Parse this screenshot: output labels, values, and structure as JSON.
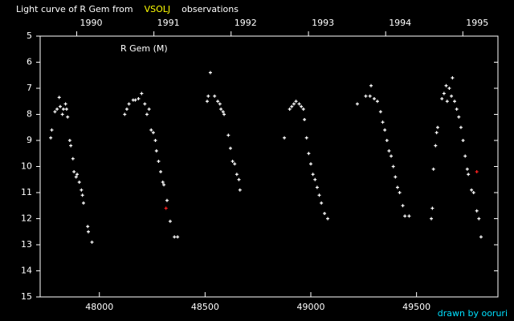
{
  "chart_data": {
    "type": "scatter",
    "title_parts": [
      "Light curve of R Gem from",
      "VSOLJ",
      "observations"
    ],
    "title_colors": [
      "#ffffff",
      "#ffff00",
      "#ffffff"
    ],
    "label": "R Gem (M)",
    "credit": "drawn by ooruri",
    "xlim": [
      47720,
      49885
    ],
    "ylim": [
      15,
      5
    ],
    "xticks": [
      48000,
      48500,
      49000,
      49500
    ],
    "yticks": [
      5,
      6,
      7,
      8,
      9,
      10,
      11,
      12,
      13,
      14,
      15
    ],
    "x2ticks": [
      {
        "value": 47893,
        "label": "1990"
      },
      {
        "value": 48258,
        "label": "1991"
      },
      {
        "value": 48623,
        "label": "1992"
      },
      {
        "value": 48989,
        "label": "1993"
      },
      {
        "value": 49354,
        "label": "1994"
      },
      {
        "value": 49719,
        "label": "1995"
      }
    ],
    "series": [
      {
        "color": "#ffffff",
        "x": [
          47770,
          47775,
          47790,
          47800,
          47810,
          47815,
          47825,
          47830,
          47840,
          47845,
          47850,
          47860,
          47865,
          47875,
          47880,
          47890,
          47895,
          47905,
          47915,
          47920,
          47925,
          47945,
          47948,
          47965,
          48120,
          48130,
          48140,
          48160,
          48170,
          48185,
          48200,
          48215,
          48225,
          48235,
          48245,
          48255,
          48265,
          48270,
          48280,
          48290,
          48300,
          48305,
          48320,
          48335,
          48355,
          48370,
          48510,
          48515,
          48525,
          48545,
          48560,
          48570,
          48575,
          48585,
          48590,
          48610,
          48620,
          48630,
          48640,
          48650,
          48660,
          48665,
          48875,
          48900,
          48910,
          48920,
          48930,
          48945,
          48955,
          48965,
          48970,
          48980,
          48990,
          49000,
          49010,
          49020,
          49030,
          49040,
          49050,
          49065,
          49080,
          49220,
          49260,
          49280,
          49285,
          49300,
          49315,
          49330,
          49340,
          49350,
          49360,
          49370,
          49380,
          49390,
          49400,
          49410,
          49420,
          49435,
          49445,
          49465,
          49570,
          49575,
          49580,
          49590,
          49595,
          49600,
          49620,
          49630,
          49640,
          49645,
          49655,
          49665,
          49670,
          49680,
          49690,
          49700,
          49710,
          49720,
          49730,
          49740,
          49745,
          49760,
          49770,
          49785,
          49795,
          49805
        ],
        "values": [
          8.9,
          8.6,
          7.9,
          7.8,
          7.35,
          7.7,
          8.0,
          7.8,
          7.6,
          7.8,
          8.1,
          9.0,
          9.2,
          9.7,
          10.2,
          10.4,
          10.3,
          10.6,
          10.9,
          11.1,
          11.4,
          12.3,
          12.5,
          12.9,
          8.0,
          7.8,
          7.6,
          7.45,
          7.45,
          7.4,
          7.2,
          7.6,
          8.0,
          7.8,
          8.6,
          8.7,
          9.0,
          9.4,
          9.8,
          10.2,
          10.6,
          10.7,
          11.3,
          12.1,
          12.7,
          12.7,
          7.5,
          7.3,
          6.4,
          7.3,
          7.5,
          7.6,
          7.8,
          7.9,
          8.0,
          8.8,
          9.3,
          9.8,
          9.9,
          10.3,
          10.5,
          10.9,
          8.9,
          7.8,
          7.7,
          7.6,
          7.5,
          7.6,
          7.7,
          7.8,
          8.2,
          8.9,
          9.5,
          9.9,
          10.3,
          10.5,
          10.8,
          11.1,
          11.4,
          11.8,
          12.0,
          7.6,
          7.3,
          7.3,
          6.9,
          7.4,
          7.5,
          7.9,
          8.3,
          8.6,
          9.0,
          9.4,
          9.6,
          10.0,
          10.4,
          10.8,
          11.0,
          11.5,
          11.9,
          11.9,
          12.0,
          11.6,
          10.1,
          9.2,
          8.7,
          8.5,
          7.4,
          7.2,
          6.9,
          7.5,
          7.0,
          7.3,
          6.6,
          7.5,
          7.8,
          8.1,
          8.5,
          9.0,
          9.6,
          10.1,
          10.3,
          10.9,
          11.0,
          11.7,
          12.0,
          12.7
        ]
      },
      {
        "color": "#ff2020",
        "x": [
          48315,
          49785
        ],
        "values": [
          11.6,
          10.2
        ]
      }
    ]
  }
}
